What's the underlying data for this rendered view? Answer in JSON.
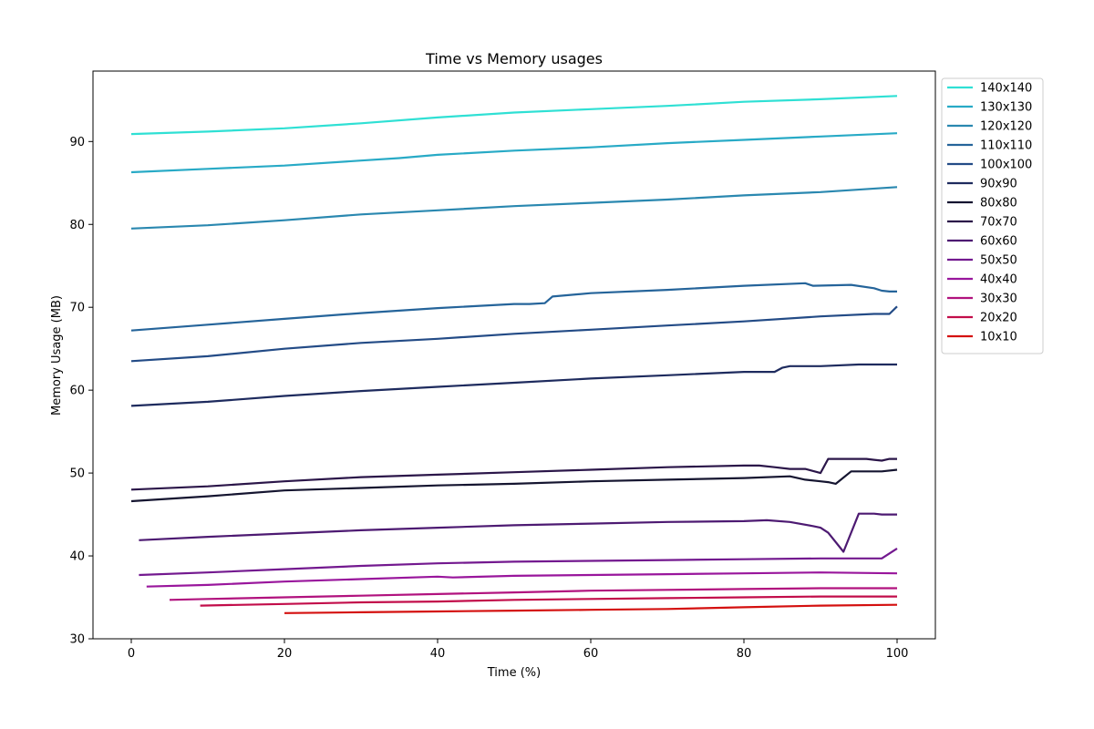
{
  "chart_data": {
    "type": "line",
    "title": "Time vs Memory usages",
    "xlabel": "Time (%)",
    "ylabel": "Memory Usage (MB)",
    "xlim": [
      -5,
      105
    ],
    "ylim": [
      30,
      98.5
    ],
    "xticks": [
      0,
      20,
      40,
      60,
      80,
      100
    ],
    "yticks": [
      30,
      40,
      50,
      60,
      70,
      80,
      90
    ],
    "grid": false,
    "legend_position": "outside-right-top",
    "series": [
      {
        "name": "140x140",
        "color": "#2fe0d4",
        "x": [
          0,
          10,
          20,
          30,
          40,
          50,
          60,
          70,
          80,
          90,
          100
        ],
        "y": [
          90.9,
          91.2,
          91.6,
          92.2,
          92.9,
          93.5,
          93.9,
          94.3,
          94.8,
          95.1,
          95.5
        ]
      },
      {
        "name": "130x130",
        "color": "#28aac6",
        "x": [
          0,
          10,
          20,
          30,
          35,
          40,
          50,
          60,
          70,
          80,
          90,
          100
        ],
        "y": [
          86.3,
          86.7,
          87.1,
          87.7,
          88.0,
          88.4,
          88.9,
          89.3,
          89.8,
          90.2,
          90.6,
          91.0
        ]
      },
      {
        "name": "120x120",
        "color": "#2a88b0",
        "x": [
          0,
          10,
          20,
          30,
          40,
          50,
          60,
          70,
          80,
          90,
          100
        ],
        "y": [
          79.5,
          79.9,
          80.5,
          81.2,
          81.7,
          82.2,
          82.6,
          83.0,
          83.5,
          83.9,
          84.5
        ]
      },
      {
        "name": "110x110",
        "color": "#25649a",
        "x": [
          0,
          10,
          20,
          30,
          40,
          50,
          52,
          54,
          55,
          60,
          70,
          80,
          88,
          89,
          94,
          97,
          98,
          99,
          100
        ],
        "y": [
          67.2,
          67.9,
          68.6,
          69.3,
          69.9,
          70.4,
          70.4,
          70.5,
          71.3,
          71.7,
          72.1,
          72.6,
          72.9,
          72.6,
          72.7,
          72.3,
          72.0,
          71.9,
          71.9
        ]
      },
      {
        "name": "100x100",
        "color": "#234b86",
        "x": [
          0,
          10,
          20,
          30,
          40,
          50,
          60,
          70,
          80,
          90,
          97,
          99,
          100
        ],
        "y": [
          63.5,
          64.1,
          65.0,
          65.7,
          66.2,
          66.8,
          67.3,
          67.8,
          68.3,
          68.9,
          69.2,
          69.2,
          70.1
        ]
      },
      {
        "name": "90x90",
        "color": "#1e2b5e",
        "x": [
          0,
          10,
          20,
          30,
          40,
          50,
          60,
          70,
          80,
          82,
          83,
          84,
          85,
          86,
          90,
          95,
          100
        ],
        "y": [
          58.1,
          58.6,
          59.3,
          59.9,
          60.4,
          60.9,
          61.4,
          61.8,
          62.2,
          62.2,
          62.2,
          62.2,
          62.7,
          62.9,
          62.9,
          63.1,
          63.1
        ]
      },
      {
        "name": "80x80",
        "color": "#151530",
        "x": [
          0,
          10,
          20,
          30,
          40,
          50,
          60,
          70,
          80,
          86,
          88,
          90,
          91,
          92,
          94,
          96,
          98,
          100
        ],
        "y": [
          46.6,
          47.2,
          47.9,
          48.2,
          48.5,
          48.7,
          49.0,
          49.2,
          49.4,
          49.6,
          49.2,
          49.0,
          48.9,
          48.7,
          50.2,
          50.2,
          50.2,
          50.4
        ]
      },
      {
        "name": "70x70",
        "color": "#2b1649",
        "x": [
          0,
          10,
          20,
          30,
          40,
          50,
          60,
          70,
          80,
          82,
          84,
          86,
          88,
          90,
          91,
          92,
          95,
          96,
          97,
          98,
          99,
          100
        ],
        "y": [
          48.0,
          48.4,
          49.0,
          49.5,
          49.8,
          50.1,
          50.4,
          50.7,
          50.9,
          50.9,
          50.7,
          50.5,
          50.5,
          50.0,
          51.7,
          51.7,
          51.7,
          51.7,
          51.6,
          51.5,
          51.7,
          51.7
        ]
      },
      {
        "name": "60x60",
        "color": "#4d1a72",
        "x": [
          1,
          10,
          20,
          30,
          40,
          50,
          60,
          70,
          80,
          83,
          86,
          89,
          90,
          91,
          93,
          95,
          97,
          98,
          100
        ],
        "y": [
          41.9,
          42.3,
          42.7,
          43.1,
          43.4,
          43.7,
          43.9,
          44.1,
          44.2,
          44.3,
          44.1,
          43.6,
          43.4,
          42.8,
          40.5,
          45.1,
          45.1,
          45.0,
          45.0
        ]
      },
      {
        "name": "50x50",
        "color": "#73198f",
        "x": [
          1,
          10,
          20,
          30,
          40,
          50,
          60,
          70,
          80,
          90,
          95,
          98,
          100
        ],
        "y": [
          37.7,
          38.0,
          38.4,
          38.8,
          39.1,
          39.3,
          39.4,
          39.5,
          39.6,
          39.7,
          39.7,
          39.7,
          40.9
        ]
      },
      {
        "name": "40x40",
        "color": "#99169c",
        "x": [
          2,
          10,
          20,
          30,
          40,
          42,
          50,
          60,
          70,
          80,
          90,
          100
        ],
        "y": [
          36.3,
          36.5,
          36.9,
          37.2,
          37.5,
          37.4,
          37.6,
          37.7,
          37.8,
          37.9,
          38.0,
          37.9
        ]
      },
      {
        "name": "30x30",
        "color": "#b1127e",
        "x": [
          5,
          10,
          20,
          30,
          40,
          50,
          60,
          70,
          80,
          90,
          100
        ],
        "y": [
          34.7,
          34.8,
          35.0,
          35.2,
          35.4,
          35.6,
          35.8,
          35.9,
          36.0,
          36.1,
          36.1
        ]
      },
      {
        "name": "20x20",
        "color": "#c20d4a",
        "x": [
          9,
          20,
          30,
          40,
          50,
          60,
          70,
          80,
          90,
          100
        ],
        "y": [
          34.0,
          34.2,
          34.4,
          34.5,
          34.7,
          34.8,
          34.9,
          35.0,
          35.1,
          35.1
        ]
      },
      {
        "name": "10x10",
        "color": "#d4100f",
        "x": [
          20,
          30,
          40,
          50,
          60,
          70,
          80,
          90,
          100
        ],
        "y": [
          33.1,
          33.2,
          33.3,
          33.4,
          33.5,
          33.6,
          33.8,
          34.0,
          34.1
        ]
      }
    ]
  }
}
